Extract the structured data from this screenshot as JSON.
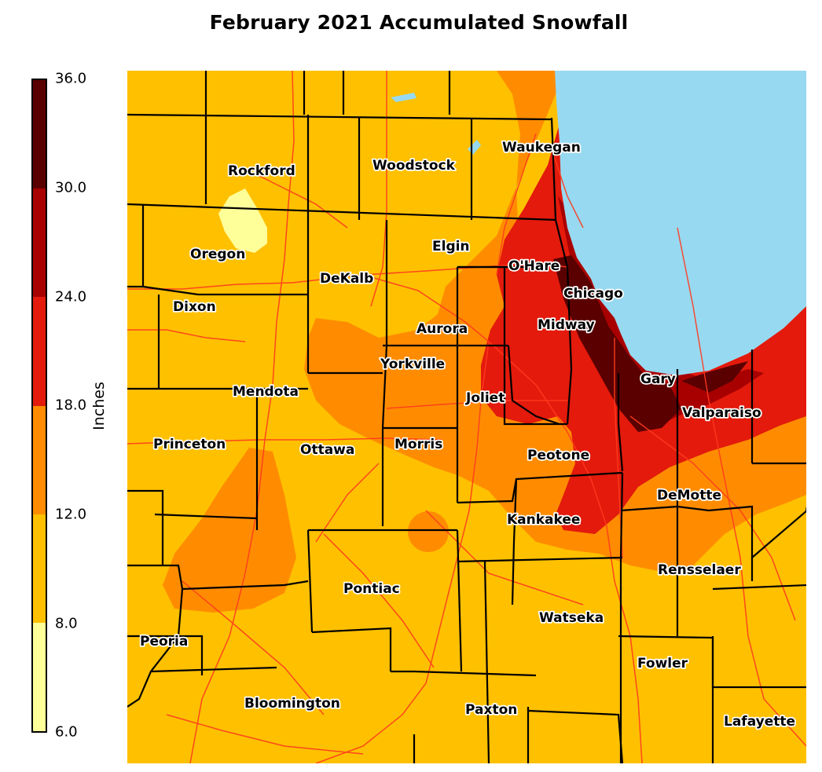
{
  "title": "February 2021 Accumulated Snowfall",
  "legend": {
    "label": "Inches",
    "ticks": [
      "36.0",
      "30.0",
      "24.0",
      "18.0",
      "12.0",
      "8.0",
      "6.0"
    ],
    "bands": [
      {
        "range": "30.0-36.0",
        "color": "#5a0000"
      },
      {
        "range": "24.0-30.0",
        "color": "#a80000"
      },
      {
        "range": "18.0-24.0",
        "color": "#e31a0c"
      },
      {
        "range": "12.0-18.0",
        "color": "#ff8c00"
      },
      {
        "range": "8.0-12.0",
        "color": "#ffc000"
      },
      {
        "range": "6.0-8.0",
        "color": "#ffff99"
      }
    ]
  },
  "map": {
    "lake_color": "#97d9f0",
    "county_line_color": "#000000",
    "road_color": "#ff3b1f",
    "cities": [
      {
        "name": "Rockford"
      },
      {
        "name": "Woodstock"
      },
      {
        "name": "Waukegan"
      },
      {
        "name": "Oregon"
      },
      {
        "name": "Elgin"
      },
      {
        "name": "O'Hare"
      },
      {
        "name": "DeKalb"
      },
      {
        "name": "Chicago"
      },
      {
        "name": "Dixon"
      },
      {
        "name": "Midway"
      },
      {
        "name": "Aurora"
      },
      {
        "name": "Yorkville"
      },
      {
        "name": "Gary"
      },
      {
        "name": "Mendota"
      },
      {
        "name": "Joliet"
      },
      {
        "name": "Valparaiso"
      },
      {
        "name": "Princeton"
      },
      {
        "name": "Ottawa"
      },
      {
        "name": "Morris"
      },
      {
        "name": "Peotone"
      },
      {
        "name": "DeMotte"
      },
      {
        "name": "Kankakee"
      },
      {
        "name": "Rensselaer"
      },
      {
        "name": "Pontiac"
      },
      {
        "name": "Watseka"
      },
      {
        "name": "Peoria"
      },
      {
        "name": "Fowler"
      },
      {
        "name": "Bloomington"
      },
      {
        "name": "Paxton"
      },
      {
        "name": "Lafayette"
      }
    ]
  }
}
